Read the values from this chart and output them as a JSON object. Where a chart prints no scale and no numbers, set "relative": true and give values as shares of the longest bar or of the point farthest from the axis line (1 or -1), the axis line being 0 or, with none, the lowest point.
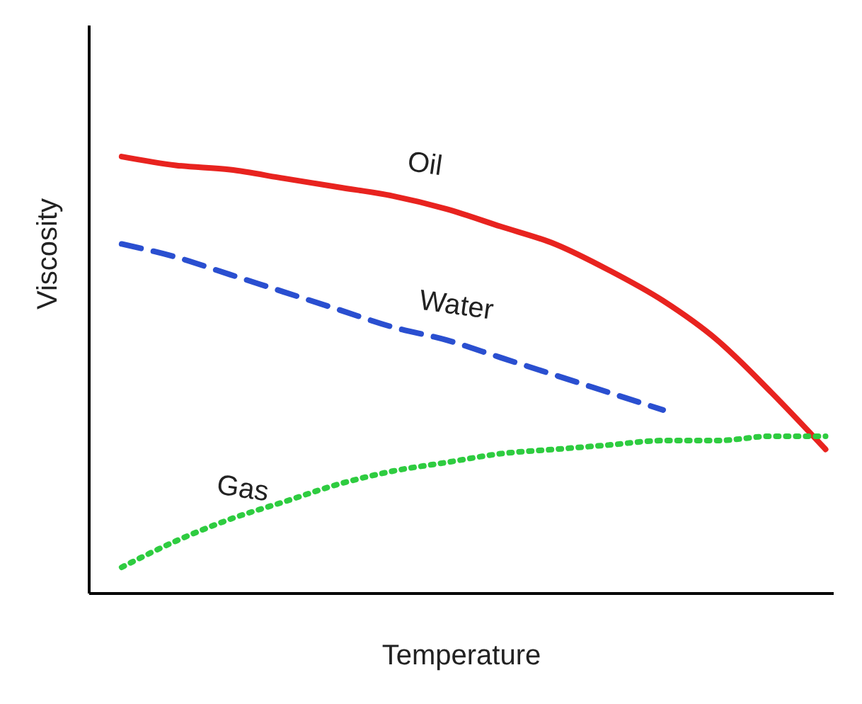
{
  "chart_data": {
    "type": "line",
    "relative": true,
    "xlabel": "Temperature",
    "ylabel": "Viscosity",
    "categories": [
      null,
      null,
      null,
      null,
      null,
      null,
      null,
      null,
      null,
      null,
      null,
      null,
      null,
      null
    ],
    "legend": false,
    "grid": false,
    "marker": "none",
    "series": [
      {
        "name": "Oil",
        "color": "#e8231f",
        "line_style": "solid",
        "values": [
          1,
          0.98,
          0.97,
          0.95,
          0.93,
          0.91,
          0.88,
          0.84,
          0.8,
          0.74,
          0.67,
          0.58,
          0.46,
          0.33
        ]
      },
      {
        "name": "Water",
        "color": "#2a4fd0",
        "line_style": "dashed",
        "values": [
          0.8,
          0.77,
          0.73,
          0.69,
          0.65,
          0.61,
          0.58,
          0.54,
          0.5,
          0.46,
          0.42,
          null,
          null,
          null
        ]
      },
      {
        "name": "Gas",
        "color": "#2ecc40",
        "line_style": "dotted",
        "values": [
          0.06,
          0.12,
          0.17,
          0.21,
          0.25,
          0.28,
          0.3,
          0.32,
          0.33,
          0.34,
          0.35,
          0.35,
          0.36,
          0.36
        ]
      }
    ]
  }
}
